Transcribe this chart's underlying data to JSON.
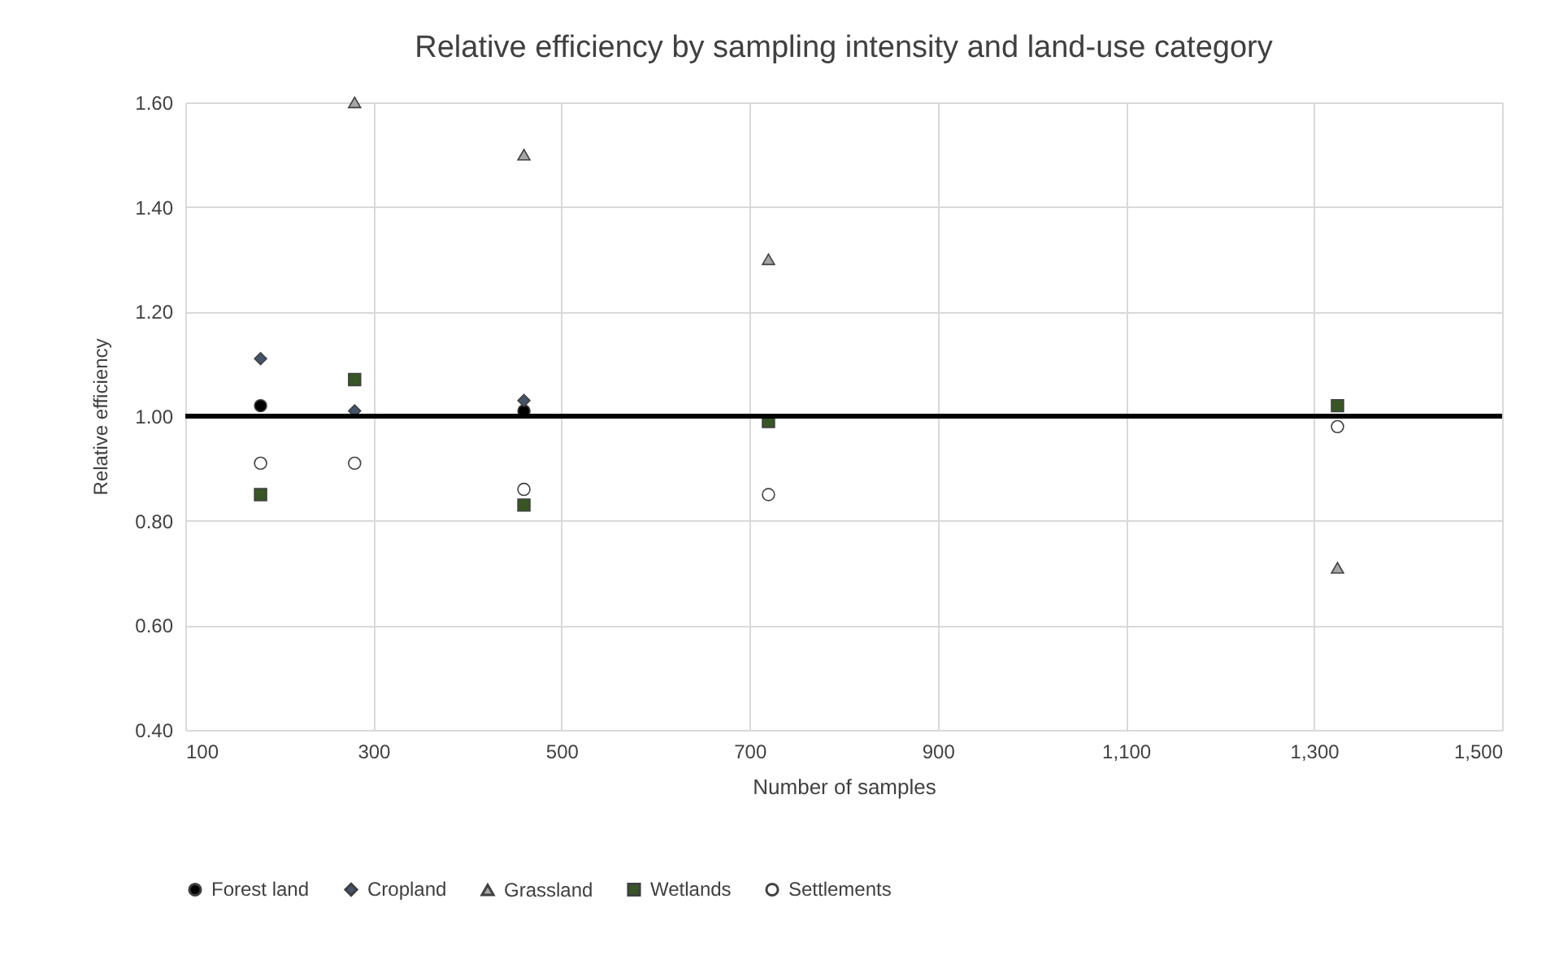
{
  "chart_data": {
    "type": "scatter",
    "title": "Relative efficiency by sampling intensity and land-use category",
    "xlabel": "Number of samples",
    "ylabel": "Relative efficiency",
    "x": [
      180,
      280,
      460,
      720,
      1325
    ],
    "series": [
      {
        "name": "Forest land",
        "color": "#000000",
        "marker": "circle",
        "values": [
          1.02,
          null,
          1.01,
          null,
          null
        ]
      },
      {
        "name": "Cropland",
        "color": "#44546a",
        "marker": "diamond",
        "values": [
          1.11,
          1.01,
          1.03,
          null,
          null
        ]
      },
      {
        "name": "Grassland",
        "color": "#a5a5a5",
        "marker": "triangle",
        "values": [
          null,
          1.6,
          1.5,
          1.3,
          0.71
        ]
      },
      {
        "name": "Wetlands",
        "color": "#375623",
        "marker": "square",
        "values": [
          0.85,
          1.07,
          0.83,
          0.99,
          1.02
        ]
      },
      {
        "name": "Settlements",
        "color": "#ffffff",
        "marker": "circle",
        "values": [
          0.91,
          0.91,
          0.86,
          0.85,
          0.98
        ]
      }
    ],
    "xlim": [
      100,
      1500
    ],
    "xticks": [
      100,
      300,
      500,
      700,
      900,
      {
        "value": 1100,
        "label": "1,100"
      },
      {
        "value": 1300,
        "label": "1,300"
      },
      {
        "value": 1500,
        "label": "1,500"
      }
    ],
    "ylim": [
      0.4,
      1.6
    ],
    "yticks": [
      {
        "value": 0.4,
        "label": "0.40"
      },
      {
        "value": 0.6,
        "label": "0.60"
      },
      {
        "value": 0.8,
        "label": "0.80"
      },
      {
        "value": 1.0,
        "label": "1.00"
      },
      {
        "value": 1.2,
        "label": "1.20"
      },
      {
        "value": 1.4,
        "label": "1.40"
      },
      {
        "value": 1.6,
        "label": "1.60"
      }
    ],
    "ref_lines": [
      {
        "axis": "y",
        "value": 1.0,
        "color": "#000000"
      }
    ],
    "grid": true,
    "legend": "bottom"
  }
}
